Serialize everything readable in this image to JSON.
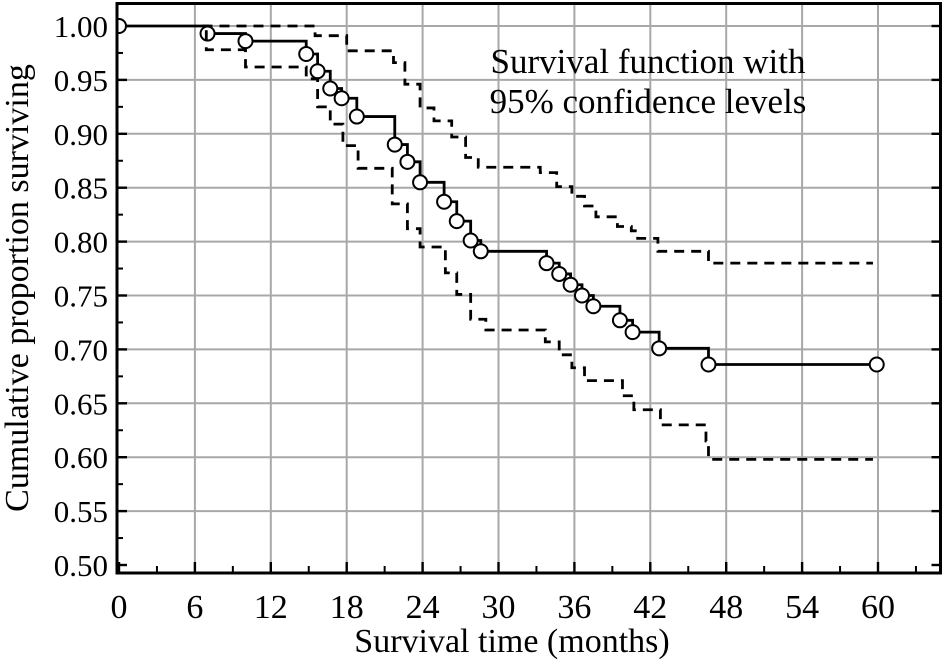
{
  "figure": {
    "annotation": {
      "line1": "Survival function with",
      "line2": "95% confidence levels"
    }
  },
  "colors": {
    "curve": "#000000",
    "grid": "#a8a8a8",
    "frame": "#000000",
    "text": "#000000",
    "marker_fill": "#ffffff",
    "background": "#ffffff"
  },
  "chart_data": {
    "type": "line",
    "subtype": "kaplan-meier-step",
    "title": "Survival function with 95% confidence levels",
    "xlabel": "Survival time (months)",
    "ylabel": "Cumulative proportion surviving",
    "xlim": [
      0,
      65
    ],
    "ylim": [
      0.49,
      1.02
    ],
    "grid": true,
    "x_ticks_major": [
      0,
      6,
      12,
      18,
      24,
      30,
      36,
      42,
      48,
      54,
      60
    ],
    "x_ticks_minor": [
      3,
      9,
      15,
      21,
      27,
      33,
      39,
      45,
      51,
      57,
      63
    ],
    "x_tick_labels": [
      "0",
      "6",
      "12",
      "18",
      "24",
      "30",
      "36",
      "42",
      "48",
      "54",
      "60"
    ],
    "y_ticks_major": [
      0.5,
      0.55,
      0.6,
      0.65,
      0.7,
      0.75,
      0.8,
      0.85,
      0.9,
      0.95,
      1.0
    ],
    "y_ticks_minor": [
      0.525,
      0.575,
      0.625,
      0.675,
      0.725,
      0.775,
      0.825,
      0.875,
      0.925,
      0.975
    ],
    "y_tick_labels": [
      "0.50",
      "0.55",
      "0.60",
      "0.65",
      "0.70",
      "0.75",
      "0.80",
      "0.85",
      "0.90",
      "0.95",
      "1.00"
    ],
    "series": [
      {
        "name": "survival",
        "style": "solid",
        "marker": "circle",
        "end_t": 59.9,
        "step_points": [
          [
            0,
            1.0
          ],
          [
            7,
            0.993
          ],
          [
            10,
            0.986
          ],
          [
            14.8,
            0.974
          ],
          [
            15.7,
            0.958
          ],
          [
            16.7,
            0.942
          ],
          [
            17.6,
            0.933
          ],
          [
            18.8,
            0.916
          ],
          [
            21.8,
            0.89
          ],
          [
            22.8,
            0.874
          ],
          [
            23.8,
            0.855
          ],
          [
            25.7,
            0.837
          ],
          [
            26.7,
            0.819
          ],
          [
            27.8,
            0.801
          ],
          [
            28.6,
            0.791
          ],
          [
            33.8,
            0.78
          ],
          [
            34.8,
            0.77
          ],
          [
            35.7,
            0.76
          ],
          [
            36.6,
            0.75
          ],
          [
            37.5,
            0.74
          ],
          [
            39.6,
            0.727
          ],
          [
            40.6,
            0.716
          ],
          [
            42.7,
            0.701
          ],
          [
            46.6,
            0.686
          ]
        ]
      },
      {
        "name": "upper 95% confidence limit",
        "style": "dashed",
        "marker": "none",
        "end_t": 59.6,
        "step_points": [
          [
            6.6,
            1.0
          ],
          [
            15.5,
            0.991
          ],
          [
            18.0,
            0.977
          ],
          [
            21.7,
            0.966
          ],
          [
            22.6,
            0.946
          ],
          [
            23.8,
            0.924
          ],
          [
            24.9,
            0.912
          ],
          [
            26.3,
            0.897
          ],
          [
            27.4,
            0.878
          ],
          [
            28.4,
            0.869
          ],
          [
            33.3,
            0.864
          ],
          [
            34.6,
            0.851
          ],
          [
            35.8,
            0.842
          ],
          [
            36.8,
            0.833
          ],
          [
            37.7,
            0.823
          ],
          [
            39.4,
            0.814
          ],
          [
            40.5,
            0.81
          ],
          [
            41.0,
            0.803
          ],
          [
            42.6,
            0.791
          ],
          [
            46.6,
            0.78
          ]
        ]
      },
      {
        "name": "lower 95% confidence limit",
        "style": "dashed",
        "marker": "none",
        "end_t": 59.6,
        "step_points": [
          [
            6.9,
            0.996
          ],
          [
            6.9,
            0.978
          ],
          [
            10.0,
            0.962
          ],
          [
            14.8,
            0.951
          ],
          [
            15.7,
            0.925
          ],
          [
            16.7,
            0.909
          ],
          [
            17.7,
            0.889
          ],
          [
            18.9,
            0.868
          ],
          [
            21.6,
            0.835
          ],
          [
            22.8,
            0.812
          ],
          [
            23.8,
            0.795
          ],
          [
            25.8,
            0.771
          ],
          [
            26.7,
            0.751
          ],
          [
            27.8,
            0.728
          ],
          [
            29.0,
            0.718
          ],
          [
            33.7,
            0.707
          ],
          [
            34.8,
            0.695
          ],
          [
            35.8,
            0.683
          ],
          [
            36.8,
            0.671
          ],
          [
            39.8,
            0.657
          ],
          [
            40.7,
            0.644
          ],
          [
            42.8,
            0.63
          ],
          [
            46.4,
            0.615
          ],
          [
            46.6,
            0.598
          ]
        ]
      }
    ]
  }
}
